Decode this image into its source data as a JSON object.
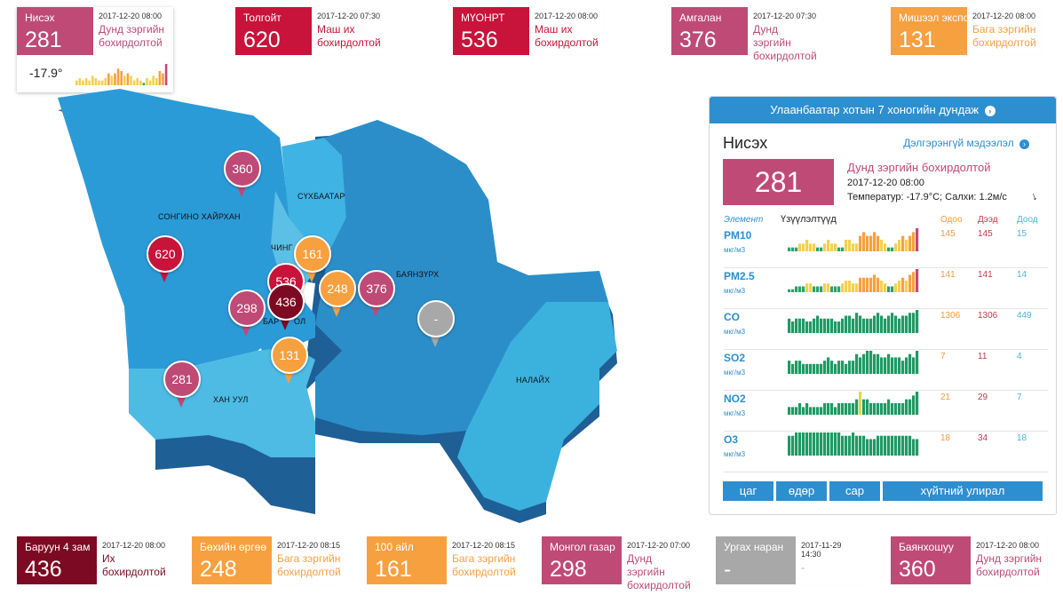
{
  "colors": {
    "moderate": "#bf4a76",
    "very_unhealthy": "#c8143a",
    "slight": "#f7a040",
    "hazardous": "#7d0a23",
    "nodata": "#a8a8a8",
    "accent": "#2d8fcf"
  },
  "top_stations": [
    {
      "name": "Нисэх",
      "value": "281",
      "time": "2017-12-20 08:00",
      "status": "Дунд зэргийн бохирдолтой",
      "temp": "-17.9°"
    },
    {
      "name": "Толгойт",
      "value": "620",
      "time": "2017-12-20 07:30",
      "status": "Маш их бохирдолтой"
    },
    {
      "name": "МҮОНРТ",
      "value": "536",
      "time": "2017-12-20 08:00",
      "status": "Маш их бохирдолтой"
    },
    {
      "name": "Амгалан",
      "value": "376",
      "time": "2017-12-20 07:30",
      "status": "Дунд зэргийн бохирдолтой"
    },
    {
      "name": "Мишээл экспо",
      "value": "131",
      "time": "2017-12-20 08:00",
      "status": "Бага зэргийн бохирдолтой"
    }
  ],
  "bottom_stations": [
    {
      "name": "Баруун 4 зам",
      "value": "436",
      "time": "2017-12-20 08:00",
      "status": "Их бохирдолтой"
    },
    {
      "name": "Бөхийн өргөө",
      "value": "248",
      "time": "2017-12-20 08:15",
      "status": "Бага зэргийн бохирдолтой"
    },
    {
      "name": "100 айл",
      "value": "161",
      "time": "2017-12-20 08:15",
      "status": "Бага зэргийн бохирдолтой"
    },
    {
      "name": "Монгол газар",
      "value": "298",
      "time": "2017-12-20 07:00",
      "status": "Дунд зэргийн бохирдолтой"
    },
    {
      "name": "Ургах наран",
      "value": "-",
      "time": "2017-11-29 14:30",
      "status": "-"
    },
    {
      "name": "Баянхошуу",
      "value": "360",
      "time": "2017-12-20 08:00",
      "status": "Дунд зэргийн бохирдолтой"
    }
  ],
  "map": {
    "districts": [
      "СОНГИНО ХАЙРХАН",
      "СҮХБААТАР",
      "ЧИНГЭЛТЭЙ",
      "БАЯНЗҮРХ",
      "БАЯНГОЛ",
      "ХАН УУЛ",
      "НАЛАЙХ"
    ],
    "district_labels": [
      "СОНГИНО ХАЙРХАН",
      "СҮХБААТАР",
      "ЧИНГ",
      "БАЯНЗҮРХ",
      "БАР",
      "ОЛ",
      "ХАН УУЛ",
      "НАЛАЙХ"
    ],
    "pins": [
      "360",
      "620",
      "536",
      "436",
      "161",
      "248",
      "376",
      "298",
      "131",
      "281",
      "-"
    ]
  },
  "panel": {
    "header": "Улаанбаатар хотын 7 хоногийн дундаж",
    "station": "Нисэх",
    "details_link": "Дэлгэрэнгүй мэдээлэл",
    "value": "281",
    "status": "Дунд зэргийн бохирдолтой",
    "time": "2017-12-20 08:00",
    "weather": "Температур: -17.9°C; Салхи: 1.2м/с",
    "col_element": "Элемент",
    "col_indicators": "Үзүүлэлтүүд",
    "col_now": "Одоо",
    "col_max": "Дээд",
    "col_min": "Доод",
    "rows": [
      {
        "element": "PM10",
        "unit": "мкг/м3",
        "now": "145",
        "max": "145",
        "min": "15"
      },
      {
        "element": "PM2.5",
        "unit": "мкг/м3",
        "now": "141",
        "max": "141",
        "min": "14"
      },
      {
        "element": "CO",
        "unit": "мкг/м3",
        "now": "1306",
        "max": "1306",
        "min": "449"
      },
      {
        "element": "SO2",
        "unit": "мкг/м3",
        "now": "7",
        "max": "11",
        "min": "4"
      },
      {
        "element": "NO2",
        "unit": "мкг/м3",
        "now": "21",
        "max": "29",
        "min": "7"
      },
      {
        "element": "O3",
        "unit": "мкг/м3",
        "now": "18",
        "max": "34",
        "min": "18"
      }
    ],
    "tabs": [
      "цаг",
      "өдөр",
      "сар",
      "хүйтний улирал"
    ]
  },
  "sparks": {
    "nisekh": [
      2,
      3,
      2,
      3,
      2,
      4,
      3,
      2,
      2,
      3,
      5,
      4,
      5,
      7,
      6,
      4,
      5,
      4,
      2,
      3,
      2,
      1,
      3,
      2,
      4,
      3,
      6,
      5,
      9
    ],
    "pm10": [
      1,
      1,
      1,
      2,
      2,
      3,
      2,
      2,
      1,
      1,
      2,
      3,
      2,
      2,
      1,
      1,
      3,
      3,
      2,
      2,
      4,
      5,
      4,
      4,
      5,
      4,
      3,
      2,
      1,
      1,
      2,
      3,
      4,
      3,
      4,
      5,
      6
    ],
    "pm25": [
      1,
      1,
      2,
      2,
      2,
      3,
      3,
      2,
      2,
      2,
      3,
      3,
      2,
      2,
      2,
      3,
      4,
      4,
      3,
      3,
      5,
      5,
      5,
      5,
      6,
      5,
      4,
      3,
      2,
      2,
      3,
      4,
      5,
      4,
      6,
      7,
      8
    ],
    "co": [
      5,
      4,
      5,
      5,
      5,
      4,
      4,
      5,
      6,
      5,
      5,
      5,
      5,
      4,
      4,
      5,
      6,
      6,
      5,
      7,
      6,
      5,
      5,
      5,
      6,
      7,
      6,
      5,
      6,
      7,
      6,
      5,
      6,
      6,
      7,
      7,
      8
    ],
    "so2": [
      4,
      3,
      4,
      4,
      3,
      3,
      3,
      3,
      3,
      3,
      4,
      5,
      4,
      3,
      4,
      4,
      3,
      4,
      4,
      6,
      5,
      6,
      7,
      7,
      6,
      6,
      5,
      5,
      6,
      5,
      5,
      5,
      4,
      5,
      6,
      5,
      7
    ],
    "no2": [
      2,
      2,
      2,
      3,
      2,
      3,
      2,
      2,
      2,
      2,
      3,
      3,
      3,
      2,
      3,
      3,
      3,
      3,
      3,
      4,
      6,
      4,
      4,
      3,
      3,
      3,
      3,
      3,
      4,
      3,
      3,
      3,
      3,
      4,
      4,
      5,
      6
    ],
    "o3": [
      6,
      6,
      7,
      7,
      7,
      7,
      7,
      7,
      7,
      7,
      7,
      7,
      7,
      7,
      7,
      6,
      6,
      6,
      7,
      6,
      6,
      6,
      5,
      5,
      5,
      6,
      6,
      6,
      6,
      6,
      6,
      6,
      6,
      6,
      6,
      5,
      5
    ]
  }
}
